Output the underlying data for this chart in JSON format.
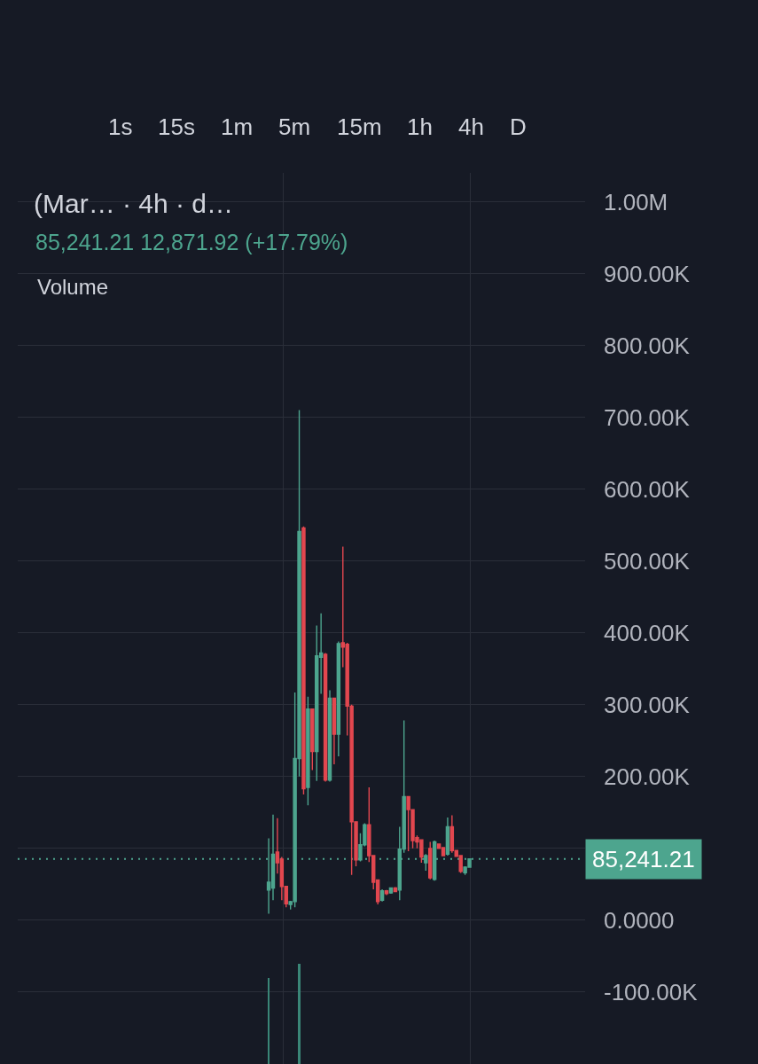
{
  "chart_data": {
    "type": "candlestick",
    "title": "(Mar… · 4h · d…",
    "subtitle": "85,241.21 12,871.92 (+17.79%)",
    "annotations": [
      "1s",
      "15s",
      "1m",
      "5m",
      "15m",
      "1h",
      "4h",
      "D",
      "Volume"
    ],
    "categories": [
      null,
      null,
      null,
      null,
      null,
      null,
      null,
      null,
      null,
      null,
      null,
      null,
      null,
      null,
      null,
      null,
      null,
      null,
      null,
      null,
      null,
      null,
      null,
      null,
      null,
      null,
      null,
      null,
      null,
      null,
      null,
      null,
      null,
      null,
      null,
      null,
      null,
      null,
      null,
      null,
      null,
      null,
      null,
      null,
      null,
      null,
      null,
      null,
      null,
      null,
      null,
      null,
      null,
      null,
      null,
      null,
      null,
      null,
      null,
      null,
      null,
      null,
      null,
      null,
      null,
      null,
      null,
      null,
      null,
      null,
      null,
      null,
      null,
      null,
      null,
      null,
      null,
      null,
      null,
      null,
      null,
      null,
      null,
      null,
      null,
      null,
      null,
      null,
      null,
      null,
      null,
      null,
      null,
      null,
      null,
      null,
      null,
      null,
      null,
      null,
      null,
      null,
      null,
      null,
      null,
      null,
      null,
      null,
      null,
      null,
      null,
      null,
      null,
      null,
      null,
      null,
      null,
      null,
      null,
      null,
      null,
      null,
      null,
      null,
      null,
      null,
      null,
      null,
      null,
      null
    ],
    "ohlc": [
      null,
      null,
      null,
      null,
      null,
      null,
      null,
      null,
      null,
      null,
      null,
      null,
      null,
      null,
      null,
      null,
      null,
      null,
      null,
      null,
      null,
      null,
      null,
      null,
      null,
      null,
      null,
      null,
      null,
      null,
      null,
      null,
      null,
      null,
      null,
      null,
      null,
      null,
      null,
      null,
      null,
      null,
      null,
      null,
      null,
      null,
      null,
      null,
      null,
      null,
      null,
      null,
      null,
      null,
      null,
      null,
      null,
      [
        42000,
        114000,
        9000,
        53000
      ],
      [
        45000,
        147000,
        28000,
        92000
      ],
      [
        95000,
        142000,
        65000,
        80000
      ],
      [
        85000,
        88000,
        28000,
        47000
      ],
      [
        47000,
        47000,
        18000,
        23000
      ],
      [
        22000,
        27000,
        15000,
        26000
      ],
      [
        26000,
        317000,
        18000,
        225000
      ],
      [
        225000,
        710000,
        200000,
        541000
      ],
      [
        546000,
        548000,
        175000,
        183000
      ],
      [
        185000,
        311000,
        160000,
        294000
      ],
      [
        294000,
        294000,
        209000,
        235000
      ],
      [
        235000,
        410000,
        194000,
        368000
      ],
      [
        366000,
        427000,
        315000,
        372000
      ],
      [
        370000,
        372000,
        193000,
        195000
      ],
      [
        195000,
        320000,
        193000,
        309000
      ],
      [
        309000,
        309000,
        217000,
        259000
      ],
      [
        259000,
        388000,
        228000,
        385000
      ],
      [
        386000,
        520000,
        352000,
        380000
      ],
      [
        384000,
        386000,
        257000,
        298000
      ],
      [
        298000,
        300000,
        63000,
        137000
      ],
      [
        137000,
        137000,
        75000,
        84000
      ],
      [
        84000,
        121000,
        82000,
        105000
      ],
      [
        105000,
        135000,
        103000,
        133000
      ],
      [
        133000,
        185000,
        81000,
        90000
      ],
      [
        90000,
        90000,
        43000,
        53000
      ],
      [
        56000,
        56000,
        22000,
        26000
      ],
      [
        28000,
        43000,
        26000,
        41000
      ],
      [
        41000,
        42000,
        35000,
        37000
      ],
      [
        38000,
        45000,
        37000,
        45000
      ],
      [
        45000,
        46000,
        39000,
        40000
      ],
      [
        42000,
        130000,
        28000,
        99000
      ],
      [
        99000,
        278000,
        94000,
        172000
      ],
      [
        172000,
        172000,
        96000,
        154000
      ],
      [
        154000,
        154000,
        100000,
        111000
      ],
      [
        115000,
        118000,
        100000,
        109000
      ],
      [
        112000,
        112000,
        80000,
        88000
      ],
      [
        80000,
        92000,
        69000,
        90000
      ],
      [
        100000,
        109000,
        57000,
        59000
      ],
      [
        57000,
        111000,
        55000,
        109000
      ],
      [
        106000,
        107000,
        100000,
        100000
      ],
      [
        101000,
        102000,
        89000,
        90000
      ],
      [
        92000,
        143000,
        90000,
        130000
      ],
      [
        130000,
        146000,
        94000,
        97000
      ],
      [
        97000,
        98000,
        88000,
        89000
      ],
      [
        90000,
        90000,
        66000,
        68000
      ],
      [
        66000,
        75000,
        63000,
        74000
      ],
      [
        74000,
        86000,
        73000,
        85241.21
      ],
      null,
      null,
      null,
      null,
      null,
      null,
      null,
      null,
      null,
      null,
      null,
      null,
      null,
      null,
      null,
      null,
      null,
      null,
      null,
      null,
      null,
      null,
      null,
      null,
      null,
      null
    ],
    "colors": [
      null,
      null,
      null,
      null,
      null,
      null,
      null,
      null,
      null,
      null,
      null,
      null,
      null,
      null,
      null,
      null,
      null,
      null,
      null,
      null,
      null,
      null,
      null,
      null,
      null,
      null,
      null,
      null,
      null,
      null,
      null,
      null,
      null,
      null,
      null,
      null,
      null,
      null,
      null,
      null,
      null,
      null,
      null,
      null,
      null,
      null,
      null,
      null,
      null,
      null,
      null,
      null,
      null,
      null,
      null,
      null,
      null,
      "#4da58e",
      "#4da58e",
      "#e2474f",
      "#e2474f",
      "#e2474f",
      "#4da58e",
      "#4da58e",
      "#4da58e",
      "#e2474f",
      "#4da58e",
      "#e2474f",
      "#4da58e",
      "#4da58e",
      "#e2474f",
      "#4da58e",
      "#e2474f",
      "#4da58e",
      "#e2474f",
      "#e2474f",
      "#e2474f",
      "#e2474f",
      "#4da58e",
      "#4da58e",
      "#e2474f",
      "#e2474f",
      "#e2474f",
      "#4da58e",
      "#e2474f",
      "#4da58e",
      "#e2474f",
      "#4da58e",
      "#4da58e",
      "#e2474f",
      "#e2474f",
      "#e2474f",
      "#e2474f",
      "#4da58e",
      "#e2474f",
      "#4da58e",
      "#e2474f",
      "#e2474f",
      "#4da58e",
      "#e2474f",
      "#e2474f",
      "#e2474f",
      "#4da58e",
      "#4da58e",
      null,
      null,
      null,
      null,
      null,
      null,
      null,
      null,
      null,
      null,
      null,
      null,
      null,
      null,
      null,
      null,
      null,
      null,
      null,
      null,
      null,
      null,
      null,
      null,
      null,
      null
    ],
    "series": [
      {
        "type": "bar",
        "color": "#3a8677",
        "base": [
          null,
          null,
          null,
          null,
          null,
          null,
          null,
          null,
          null,
          null,
          null,
          null,
          null,
          null,
          null,
          null,
          null,
          null,
          null,
          null,
          null,
          null,
          null,
          null,
          null,
          null,
          null,
          null,
          null,
          null,
          null,
          null,
          null,
          null,
          null,
          null,
          null,
          null,
          null,
          null,
          null,
          null,
          null,
          null,
          null,
          null,
          null,
          null,
          null,
          null,
          null,
          null,
          null,
          null,
          null,
          null,
          null,
          -200000,
          null,
          null,
          null,
          null,
          null,
          null,
          -200000,
          null,
          null,
          null,
          null,
          null,
          null,
          null,
          null,
          null,
          null,
          null,
          null,
          null,
          null,
          null,
          null,
          null,
          null,
          null,
          null,
          null,
          null,
          null,
          null,
          null,
          null,
          null,
          null,
          null,
          null,
          null,
          null,
          null,
          null,
          null,
          null,
          null,
          null,
          null,
          null,
          null,
          null,
          null,
          null,
          null,
          null,
          null,
          null,
          null,
          null,
          null,
          null,
          null,
          null,
          null,
          null,
          null,
          null,
          null,
          null,
          null,
          null,
          null,
          null,
          null
        ],
        "values": [
          null,
          null,
          null,
          null,
          null,
          null,
          null,
          null,
          null,
          null,
          null,
          null,
          null,
          null,
          null,
          null,
          null,
          null,
          null,
          null,
          null,
          null,
          null,
          null,
          null,
          null,
          null,
          null,
          null,
          null,
          null,
          null,
          null,
          null,
          null,
          null,
          null,
          null,
          null,
          null,
          null,
          null,
          null,
          null,
          null,
          null,
          null,
          null,
          null,
          null,
          null,
          null,
          null,
          null,
          null,
          null,
          null,
          120000,
          null,
          null,
          null,
          null,
          null,
          null,
          140000,
          null,
          null,
          null,
          null,
          null,
          null,
          null,
          null,
          null,
          null,
          null,
          null,
          null,
          null,
          null,
          null,
          null,
          null,
          null,
          null,
          null,
          null,
          null,
          null,
          null,
          null,
          null,
          null,
          null,
          null,
          null,
          null,
          null,
          null,
          null,
          null,
          null,
          null,
          null,
          null,
          null,
          null,
          null,
          null,
          null,
          null,
          null,
          null,
          null,
          null,
          null,
          null,
          null,
          null,
          null,
          null,
          null,
          null,
          null,
          null,
          null,
          null,
          null,
          null,
          null
        ]
      }
    ],
    "ylim": [
      -200000,
      1040000
    ],
    "yticks": [
      {
        "value": -100000,
        "label": "-100.00K"
      },
      {
        "value": 0,
        "label": "0.0000"
      },
      {
        "value": 100000,
        "label": null
      },
      {
        "value": 200000,
        "label": "200.00K"
      },
      {
        "value": 300000,
        "label": "300.00K"
      },
      {
        "value": 400000,
        "label": "400.00K"
      },
      {
        "value": 500000,
        "label": "500.00K"
      },
      {
        "value": 600000,
        "label": "600.00K"
      },
      {
        "value": 700000,
        "label": "700.00K"
      },
      {
        "value": 800000,
        "label": "800.00K"
      },
      {
        "value": 900000,
        "label": "900.00K"
      },
      {
        "value": 1000000,
        "label": "1.00M"
      }
    ],
    "grid": true,
    "tick_labels": "y",
    "ref_lines": [
      {
        "axis": "y",
        "value": 85241.21,
        "label": "85,241.21",
        "color": "#4da58e",
        "line_style": "dotted"
      }
    ]
  }
}
